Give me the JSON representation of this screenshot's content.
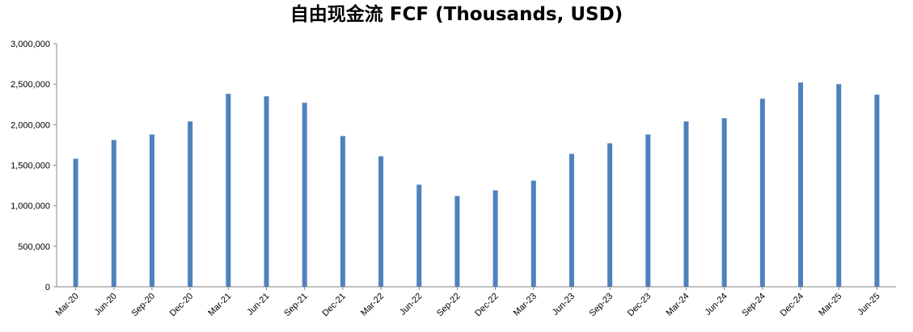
{
  "chart_data": {
    "type": "bar",
    "title": "自由现金流 FCF (Thousands, USD)",
    "xlabel": "",
    "ylabel": "",
    "ylim": [
      0,
      3000000
    ],
    "yticks": [
      "0",
      "500,000",
      "1,000,000",
      "1,500,000",
      "2,000,000",
      "2,500,000",
      "3,000,000"
    ],
    "grid": false,
    "bar_color": "#4F81BD",
    "categories": [
      "Mar-20",
      "Jun-20",
      "Sep-20",
      "Dec-20",
      "Mar-21",
      "Jun-21",
      "Sep-21",
      "Dec-21",
      "Mar-22",
      "Jun-22",
      "Sep-22",
      "Dec-22",
      "Mar-23",
      "Jun-23",
      "Sep-23",
      "Dec-23",
      "Mar-24",
      "Jun-24",
      "Sep-24",
      "Dec-24",
      "Mar-25",
      "Jun-25"
    ],
    "values": [
      1580000,
      1810000,
      1880000,
      2040000,
      2380000,
      2350000,
      2270000,
      1860000,
      1610000,
      1260000,
      1120000,
      1190000,
      1310000,
      1640000,
      1770000,
      1880000,
      2040000,
      2080000,
      2320000,
      2520000,
      2500000,
      2370000
    ]
  }
}
